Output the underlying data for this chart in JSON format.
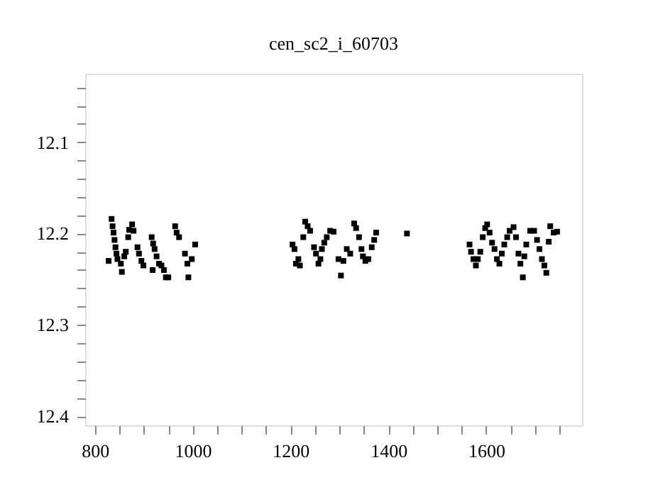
{
  "chart_data": {
    "type": "scatter",
    "title": "cen_sc2_i_60703",
    "xlim": [
      780,
      1796
    ],
    "ylim": [
      12.41,
      12.025
    ],
    "xticks": [
      800,
      {
        "value": 850,
        "label": null
      },
      {
        "value": 900,
        "label": null
      },
      {
        "value": 950,
        "label": null
      },
      1000,
      {
        "value": 1050,
        "label": null
      },
      {
        "value": 1100,
        "label": null
      },
      {
        "value": 1150,
        "label": null
      },
      1200,
      {
        "value": 1250,
        "label": null
      },
      {
        "value": 1300,
        "label": null
      },
      {
        "value": 1350,
        "label": null
      },
      1400,
      {
        "value": 1450,
        "label": null
      },
      {
        "value": 1500,
        "label": null
      },
      {
        "value": 1550,
        "label": null
      },
      1600,
      {
        "value": 1650,
        "label": null
      },
      {
        "value": 1700,
        "label": null
      },
      {
        "value": 1750,
        "label": null
      }
    ],
    "yticks": [
      {
        "value": 12.04,
        "label": null
      },
      {
        "value": 12.06,
        "label": null
      },
      {
        "value": 12.08,
        "label": null
      },
      12.1,
      {
        "value": 12.12,
        "label": null
      },
      {
        "value": 12.14,
        "label": null
      },
      {
        "value": 12.16,
        "label": null
      },
      {
        "value": 12.18,
        "label": null
      },
      12.2,
      {
        "value": 12.22,
        "label": null
      },
      {
        "value": 12.24,
        "label": null
      },
      {
        "value": 12.26,
        "label": null
      },
      {
        "value": 12.28,
        "label": null
      },
      12.3,
      {
        "value": 12.32,
        "label": null
      },
      {
        "value": 12.34,
        "label": null
      },
      {
        "value": 12.36,
        "label": null
      },
      {
        "value": 12.38,
        "label": null
      },
      12.4
    ],
    "grid": false,
    "marker": "square",
    "x": [
      828,
      834,
      836,
      838,
      840,
      842,
      844,
      846,
      853,
      855,
      860,
      863,
      868,
      870,
      876,
      879,
      887,
      890,
      895,
      899,
      918,
      916,
      919,
      922,
      926,
      931,
      936,
      941,
      945,
      950,
      964,
      967,
      972,
      984,
      989,
      991,
      998,
      1005,
      1204,
      1208,
      1211,
      1216,
      1219,
      1226,
      1230,
      1235,
      1240,
      1248,
      1252,
      1257,
      1261,
      1264,
      1269,
      1274,
      1281,
      1288,
      1298,
      1303,
      1308,
      1315,
      1322,
      1330,
      1334,
      1340,
      1345,
      1348,
      1353,
      1359,
      1366,
      1371,
      1375,
      1438,
      1566,
      1569,
      1574,
      1579,
      1583,
      1588,
      1593,
      1598,
      1602,
      1607,
      1612,
      1617,
      1622,
      1627,
      1632,
      1637,
      1643,
      1648,
      1656,
      1661,
      1666,
      1670,
      1675,
      1678,
      1682,
      1690,
      1698,
      1704,
      1709,
      1714,
      1719,
      1723,
      1728,
      1731,
      1738,
      1745
    ],
    "series": [
      {
        "color": "#000000",
        "values": [
          12.23,
          12.184,
          12.192,
          12.199,
          12.207,
          12.215,
          12.222,
          12.228,
          12.233,
          12.242,
          12.225,
          12.22,
          12.204,
          12.196,
          12.19,
          12.197,
          12.215,
          12.222,
          12.23,
          12.235,
          12.24,
          12.204,
          12.211,
          12.217,
          12.225,
          12.233,
          12.235,
          12.24,
          12.248,
          12.248,
          12.192,
          12.199,
          12.204,
          12.222,
          12.233,
          12.248,
          12.228,
          12.212,
          12.212,
          12.217,
          12.233,
          12.228,
          12.235,
          12.204,
          12.187,
          12.192,
          12.197,
          12.215,
          12.222,
          12.233,
          12.228,
          12.217,
          12.21,
          12.204,
          12.197,
          12.198,
          12.228,
          12.246,
          12.23,
          12.217,
          12.222,
          12.189,
          12.194,
          12.204,
          12.217,
          12.225,
          12.23,
          12.228,
          12.215,
          12.207,
          12.199,
          12.2,
          12.212,
          12.22,
          12.228,
          12.235,
          12.228,
          12.22,
          12.204,
          12.194,
          12.19,
          12.199,
          12.21,
          12.217,
          12.228,
          12.233,
          12.222,
          12.212,
          12.204,
          12.197,
          12.193,
          12.204,
          12.222,
          12.233,
          12.248,
          12.225,
          12.212,
          12.197,
          12.197,
          12.207,
          12.217,
          12.228,
          12.235,
          12.243,
          12.209,
          12.192,
          12.199,
          12.198
        ]
      }
    ]
  }
}
